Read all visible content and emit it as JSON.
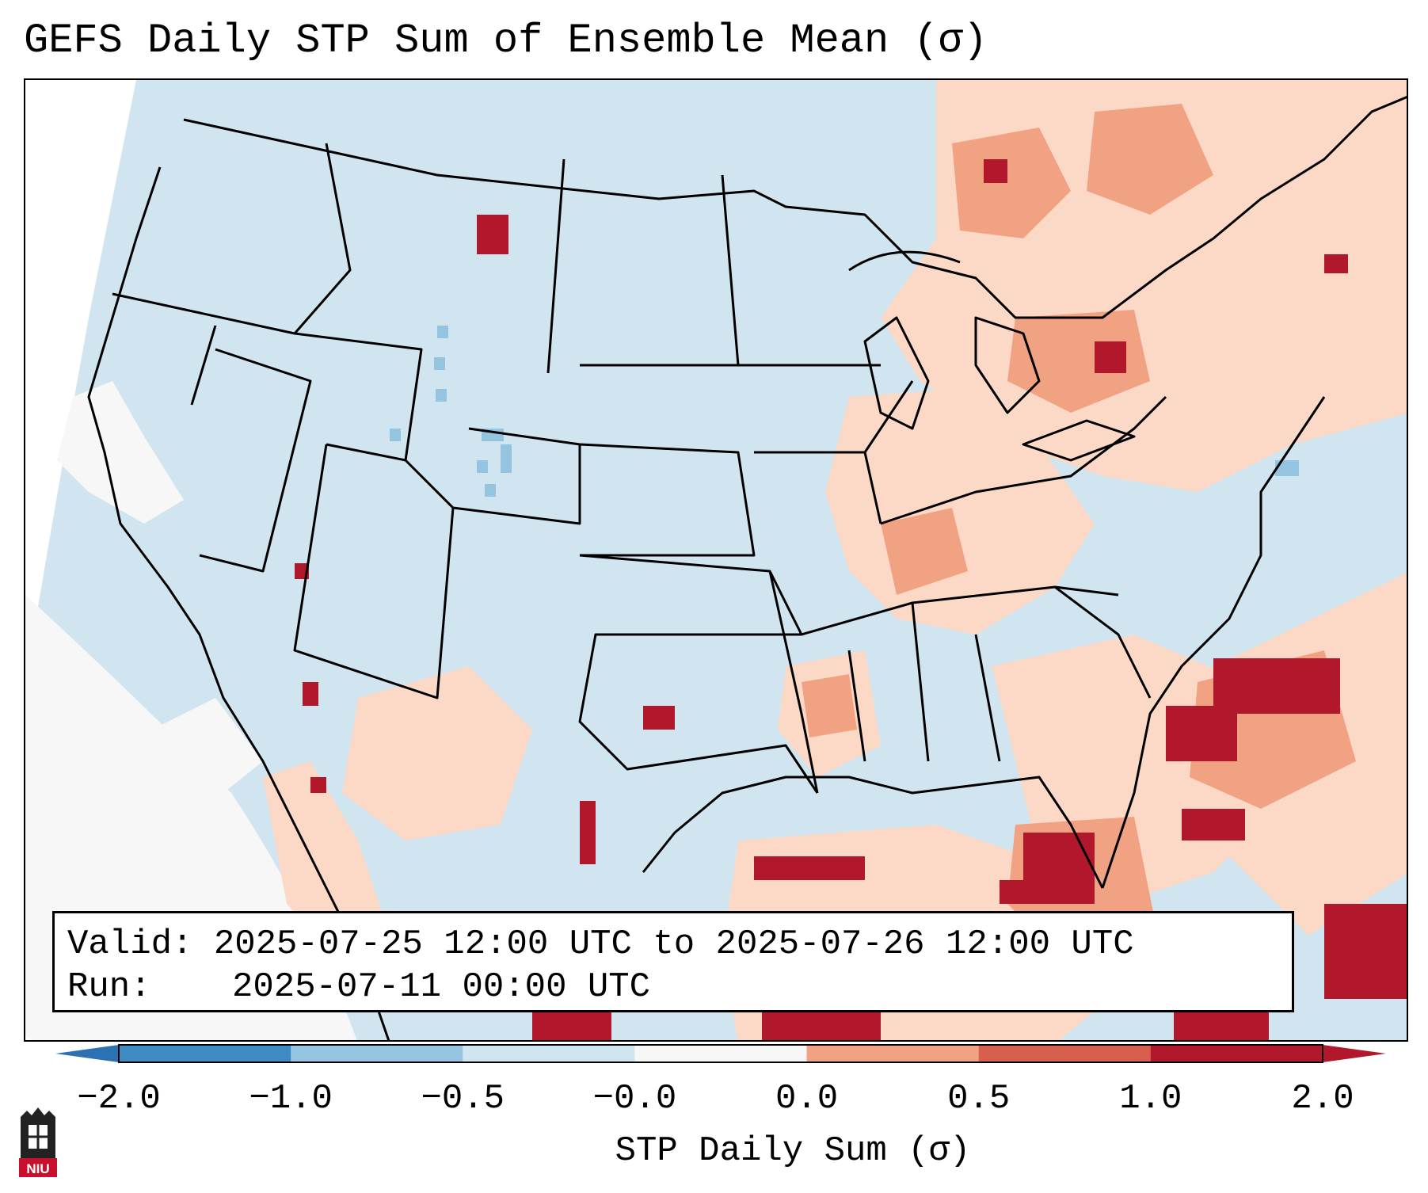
{
  "title": "GEFS Daily STP Sum of Ensemble Mean (σ)",
  "info": {
    "valid_label": "Valid:",
    "valid_value": "2025-07-25 12:00 UTC to 2025-07-26 12:00 UTC",
    "run_label": "Run:",
    "run_value": "2025-07-11 00:00 UTC"
  },
  "colorbar": {
    "label": "STP Daily Sum (σ)",
    "ticks": [
      "−2.0",
      "−1.0",
      "−0.5",
      "−0.0",
      "0.0",
      "0.5",
      "1.0",
      "2.0"
    ],
    "colors": [
      "#3f8bc4",
      "#94c4df",
      "#d1e5f0",
      "#f7f7f7",
      "#fbd9c6",
      "#f1a283",
      "#d6604d",
      "#b2182b"
    ],
    "extend_min_color": "#2c72b3",
    "extend_max_color": "#b2182b"
  },
  "map": {
    "background_color": "#d1e5f0",
    "region": "Contiguous United States"
  },
  "logo": {
    "text": "NIU"
  }
}
